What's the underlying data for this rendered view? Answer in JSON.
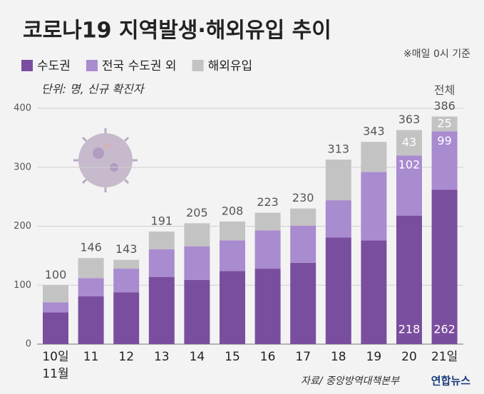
{
  "chart_data": {
    "type": "stacked_bar",
    "title": "코로나19 지역발생·해외유입 추이",
    "note": "※매일 0시 기준",
    "unit": "단위: 명, 신규 확진자",
    "total_label": "전체",
    "source": "자료/ 중앙방역대책본부",
    "logo": "연합뉴스",
    "categories": [
      "10일",
      "11",
      "12",
      "13",
      "14",
      "15",
      "16",
      "17",
      "18",
      "19",
      "20",
      "21일"
    ],
    "x_sublabel": "11월",
    "series": [
      {
        "name": "수도권",
        "color": "#7a4e9f",
        "values": [
          54,
          81,
          88,
          114,
          109,
          124,
          128,
          138,
          181,
          176,
          218,
          262
        ],
        "value_labels": [
          null,
          null,
          null,
          null,
          null,
          null,
          null,
          null,
          null,
          null,
          "218",
          "262"
        ]
      },
      {
        "name": "전국 수도권 외",
        "color": "#a98bd0",
        "values": [
          17,
          31,
          40,
          47,
          57,
          52,
          65,
          63,
          63,
          116,
          102,
          99
        ],
        "value_labels": [
          null,
          null,
          null,
          null,
          null,
          null,
          null,
          null,
          null,
          null,
          "102",
          "99"
        ]
      },
      {
        "name": "해외유입",
        "color": "#c3c3c3",
        "values": [
          29,
          34,
          15,
          30,
          39,
          32,
          30,
          29,
          69,
          51,
          43,
          25
        ],
        "value_labels": [
          null,
          null,
          null,
          null,
          null,
          null,
          null,
          null,
          null,
          null,
          "43",
          "25"
        ]
      }
    ],
    "totals": [
      100,
      146,
      143,
      191,
      205,
      208,
      223,
      230,
      313,
      343,
      363,
      386
    ],
    "ylim": [
      0,
      400
    ],
    "yticks": [
      0,
      100,
      200,
      300,
      400
    ],
    "grid": true
  }
}
